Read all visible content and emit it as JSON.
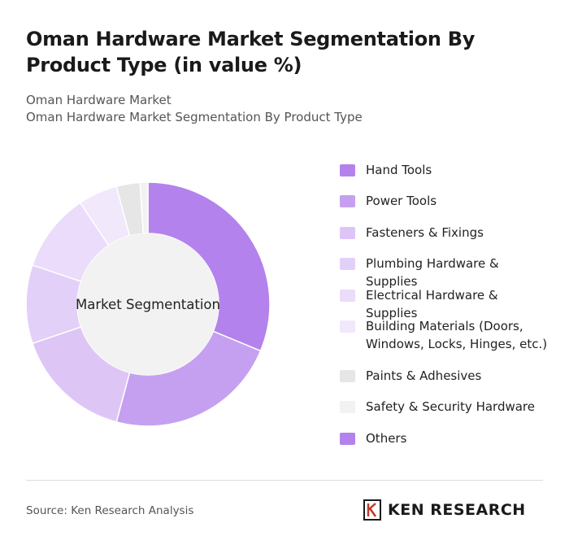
{
  "title": "Oman Hardware Market Segmentation By Product Type (in value %)",
  "subtitle_line1": "Oman Hardware Market",
  "subtitle_line2": "Oman Hardware Market Segmentation By Product Type",
  "center_label": "Market Segmentation",
  "source": "Source: Ken Research Analysis",
  "brand": "KEN RESEARCH",
  "chart_data": {
    "type": "pie",
    "style": "donut",
    "title": "Oman Hardware Market Segmentation By Product Type (in value %)",
    "categories": [
      "Hand Tools",
      "Power Tools",
      "Fasteners & Fixings",
      "Plumbing Hardware & Supplies",
      "Electrical Hardware & Supplies",
      "Building Materials (Doors, Windows, Locks, Hinges, etc.)",
      "Paints & Adhesives",
      "Safety & Security Hardware",
      "Others"
    ],
    "values": [
      30,
      22,
      15,
      10,
      10,
      5,
      3,
      1,
      0
    ],
    "colors": [
      "#b482ec",
      "#c5a0f0",
      "#ddc6f6",
      "#e3d0f8",
      "#eadcfa",
      "#f1e8fc",
      "#e6e6e6",
      "#f2f2f2",
      "#b482ec"
    ],
    "legend_position": "right"
  }
}
